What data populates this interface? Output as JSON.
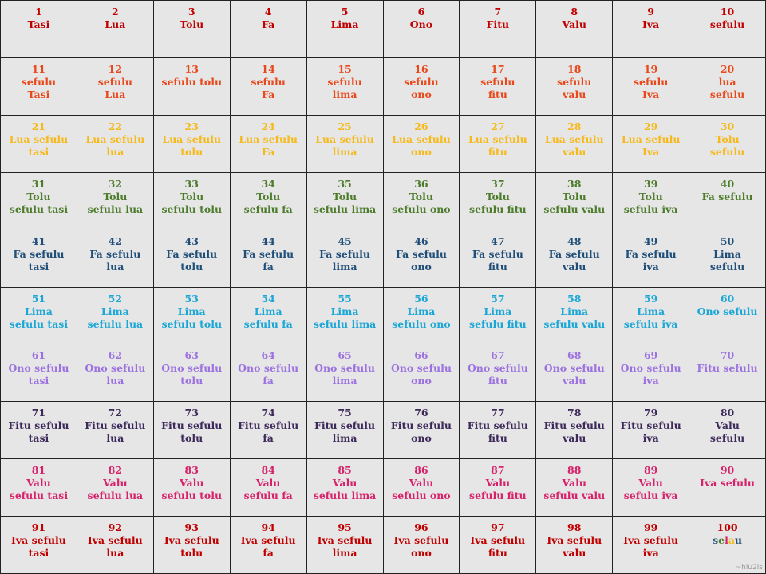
{
  "row_colors": [
    "#c00000",
    "#e8481a",
    "#f5b91a",
    "#4d7d2c",
    "#1f4e79",
    "#1aa7d6",
    "#9b72e0",
    "#3d2a5a",
    "#d6226b",
    "#c00000"
  ],
  "special_colors": {
    "selau_s": "#1f4e79",
    "selau_e": "#4d7d2c",
    "selau_l": "#d6226b",
    "selau_a": "#f5b91a",
    "selau_u": "#1f4e79"
  },
  "rows": [
    [
      {
        "n": "1",
        "w": "Tasi"
      },
      {
        "n": "2",
        "w": "Lua"
      },
      {
        "n": "3",
        "w": "Tolu"
      },
      {
        "n": "4",
        "w": "Fa"
      },
      {
        "n": "5",
        "w": "Lima"
      },
      {
        "n": "6",
        "w": "Ono"
      },
      {
        "n": "7",
        "w": "Fitu"
      },
      {
        "n": "8",
        "w": "Valu"
      },
      {
        "n": "9",
        "w": "Iva"
      },
      {
        "n": "10",
        "w": "sefulu"
      }
    ],
    [
      {
        "n": "11",
        "w": "sefulu\nTasi"
      },
      {
        "n": "12",
        "w": "sefulu\nLua"
      },
      {
        "n": "13",
        "w": "sefulu tolu"
      },
      {
        "n": "14",
        "w": "sefulu\nFa"
      },
      {
        "n": "15",
        "w": "sefulu\nlima"
      },
      {
        "n": "16",
        "w": "sefulu\nono"
      },
      {
        "n": "17",
        "w": "sefulu\nfitu"
      },
      {
        "n": "18",
        "w": "sefulu\nvalu"
      },
      {
        "n": "19",
        "w": "sefulu\nIva"
      },
      {
        "n": "20",
        "w": "lua\nsefulu"
      }
    ],
    [
      {
        "n": "21",
        "w": "Lua sefulu\ntasi"
      },
      {
        "n": "22",
        "w": "Lua sefulu\nlua"
      },
      {
        "n": "23",
        "w": "Lua sefulu\ntolu"
      },
      {
        "n": "24",
        "w": "Lua sefulu\nFa"
      },
      {
        "n": "25",
        "w": "Lua sefulu\nlima"
      },
      {
        "n": "26",
        "w": "Lua sefulu\nono"
      },
      {
        "n": "27",
        "w": "Lua sefulu\nfitu"
      },
      {
        "n": "28",
        "w": "Lua sefulu\nvalu"
      },
      {
        "n": "29",
        "w": "Lua sefulu\nIva"
      },
      {
        "n": "30",
        "w": "Tolu\nsefulu"
      }
    ],
    [
      {
        "n": "31",
        "w": "Tolu\nsefulu tasi"
      },
      {
        "n": "32",
        "w": "Tolu\nsefulu lua"
      },
      {
        "n": "33",
        "w": "Tolu\nsefulu tolu"
      },
      {
        "n": "34",
        "w": "Tolu\nsefulu fa"
      },
      {
        "n": "35",
        "w": "Tolu\nsefulu lima"
      },
      {
        "n": "36",
        "w": "Tolu\nsefulu ono"
      },
      {
        "n": "37",
        "w": "Tolu\nsefulu fitu"
      },
      {
        "n": "38",
        "w": "Tolu\nsefulu valu"
      },
      {
        "n": "39",
        "w": "Tolu\nsefulu iva"
      },
      {
        "n": "40",
        "w": "Fa sefulu"
      }
    ],
    [
      {
        "n": "41",
        "w": "Fa sefulu\ntasi"
      },
      {
        "n": "42",
        "w": "Fa sefulu\nlua"
      },
      {
        "n": "43",
        "w": "Fa sefulu\ntolu"
      },
      {
        "n": "44",
        "w": "Fa sefulu\nfa"
      },
      {
        "n": "45",
        "w": "Fa sefulu\nlima"
      },
      {
        "n": "46",
        "w": "Fa sefulu\nono"
      },
      {
        "n": "47",
        "w": "Fa sefulu\nfitu"
      },
      {
        "n": "48",
        "w": "Fa sefulu\nvalu"
      },
      {
        "n": "49",
        "w": "Fa sefulu\niva"
      },
      {
        "n": "50",
        "w": "Lima\nsefulu"
      }
    ],
    [
      {
        "n": "51",
        "w": "Lima\nsefulu tasi"
      },
      {
        "n": "52",
        "w": "Lima\nsefulu lua"
      },
      {
        "n": "53",
        "w": "Lima\nsefulu tolu"
      },
      {
        "n": "54",
        "w": "Lima\nsefulu fa"
      },
      {
        "n": "55",
        "w": "Lima\nsefulu lima"
      },
      {
        "n": "56",
        "w": "Lima\nsefulu ono"
      },
      {
        "n": "57",
        "w": "Lima\nsefulu fitu"
      },
      {
        "n": "58",
        "w": "Lima\nsefulu valu"
      },
      {
        "n": "59",
        "w": "Lima\nsefulu iva"
      },
      {
        "n": "60",
        "w": "Ono sefulu"
      }
    ],
    [
      {
        "n": "61",
        "w": "Ono sefulu\ntasi"
      },
      {
        "n": "62",
        "w": "Ono sefulu\nlua"
      },
      {
        "n": "63",
        "w": "Ono sefulu\ntolu"
      },
      {
        "n": "64",
        "w": "Ono sefulu\nfa"
      },
      {
        "n": "65",
        "w": "Ono sefulu\nlima"
      },
      {
        "n": "66",
        "w": "Ono sefulu\nono"
      },
      {
        "n": "67",
        "w": "Ono sefulu\nfitu"
      },
      {
        "n": "68",
        "w": "Ono sefulu\nvalu"
      },
      {
        "n": "69",
        "w": "Ono sefulu\niva"
      },
      {
        "n": "70",
        "w": "Fitu sefulu"
      }
    ],
    [
      {
        "n": "71",
        "w": "Fitu sefulu\ntasi"
      },
      {
        "n": "72",
        "w": "Fitu sefulu\nlua"
      },
      {
        "n": "73",
        "w": "Fitu sefulu\ntolu"
      },
      {
        "n": "74",
        "w": "Fitu sefulu\nfa"
      },
      {
        "n": "75",
        "w": "Fitu sefulu\nlima"
      },
      {
        "n": "76",
        "w": "Fitu sefulu\nono"
      },
      {
        "n": "77",
        "w": "Fitu sefulu\nfitu"
      },
      {
        "n": "78",
        "w": "Fitu sefulu\nvalu"
      },
      {
        "n": "79",
        "w": "Fitu sefulu\niva"
      },
      {
        "n": "80",
        "w": "Valu\nsefulu"
      }
    ],
    [
      {
        "n": "81",
        "w": "Valu\nsefulu tasi"
      },
      {
        "n": "82",
        "w": "Valu\nsefulu lua"
      },
      {
        "n": "83",
        "w": "Valu\nsefulu tolu"
      },
      {
        "n": "84",
        "w": "Valu\nsefulu fa"
      },
      {
        "n": "85",
        "w": "Valu\nsefulu lima"
      },
      {
        "n": "86",
        "w": "Valu\nsefulu ono"
      },
      {
        "n": "87",
        "w": "Valu\nsefulu fitu"
      },
      {
        "n": "88",
        "w": "Valu\nsefulu valu"
      },
      {
        "n": "89",
        "w": "Valu\nsefulu iva"
      },
      {
        "n": "90",
        "w": "Iva sefulu"
      }
    ],
    [
      {
        "n": "91",
        "w": "Iva sefulu\ntasi"
      },
      {
        "n": "92",
        "w": "Iva sefulu\nlua"
      },
      {
        "n": "93",
        "w": "Iva sefulu\ntolu"
      },
      {
        "n": "94",
        "w": "Iva sefulu\nfa"
      },
      {
        "n": "95",
        "w": "Iva sefulu\nlima"
      },
      {
        "n": "96",
        "w": "Iva sefulu\nono"
      },
      {
        "n": "97",
        "w": "Iva sefulu\nfitu"
      },
      {
        "n": "98",
        "w": "Iva sefulu\nvalu"
      },
      {
        "n": "99",
        "w": "Iva sefulu\niva"
      },
      {
        "n": "100",
        "w": "selau"
      }
    ]
  ],
  "watermark": "~hlu2ls"
}
